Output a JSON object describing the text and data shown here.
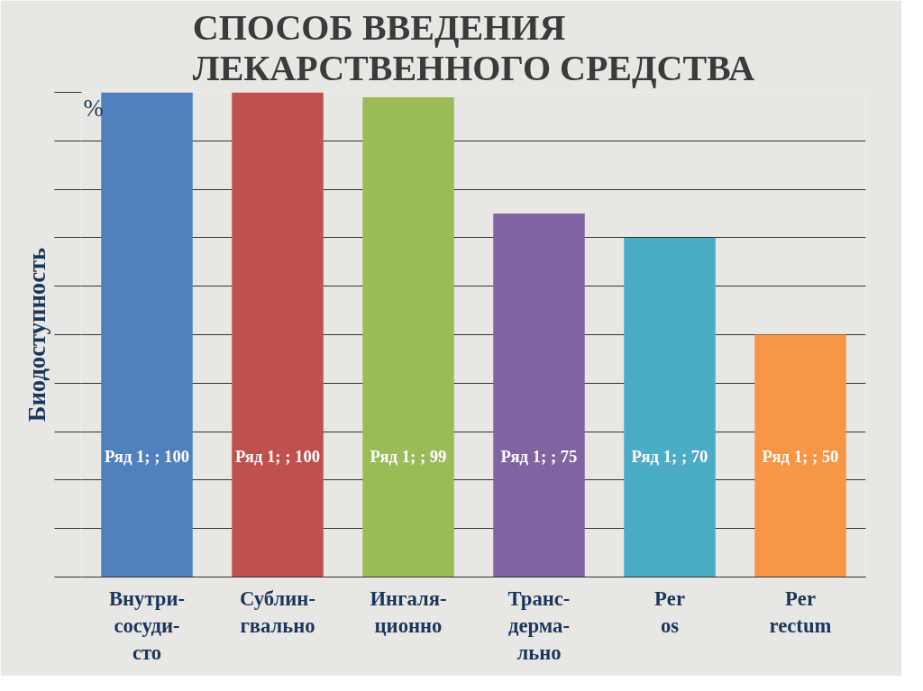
{
  "chart_data": {
    "type": "bar",
    "title": "СПОСОБ ВВЕДЕНИЯ\nЛЕКАРСТВЕННОГО СРЕДСТВА",
    "ylabel": "Биодоступность",
    "annotations": [
      "%"
    ],
    "categories": [
      "Внутри-\nсосуди-\nсто",
      "Сублин-\nгвально",
      "Ингаля-\nционно",
      "Транс-\nдерма-\nльно",
      "Per\nos",
      "Per\nrectum"
    ],
    "values": [
      100,
      100,
      99,
      75,
      70,
      50
    ],
    "colors": [
      "#4f81bd",
      "#c0504d",
      "#9bbb59",
      "#8064a2",
      "#4bacc6",
      "#f79646"
    ],
    "value_labels": [
      "Ряд 1; ; 100",
      "Ряд 1; ; 100",
      "Ряд 1; ; 99",
      "Ряд 1; ; 75",
      "Ряд 1; ; 70",
      "Ряд 1; ; 50"
    ],
    "ylim": [
      0,
      100
    ],
    "yticks": [
      {
        "value": 0,
        "label": null
      },
      {
        "value": 10,
        "label": null
      },
      {
        "value": 20,
        "label": null
      },
      {
        "value": 30,
        "label": null
      },
      {
        "value": 40,
        "label": null
      },
      {
        "value": 50,
        "label": null
      },
      {
        "value": 60,
        "label": null
      },
      {
        "value": 70,
        "label": null
      },
      {
        "value": 80,
        "label": null
      },
      {
        "value": 90,
        "label": null
      },
      {
        "value": 100,
        "label": null
      }
    ],
    "grid": "y",
    "tick_labels": "x"
  }
}
